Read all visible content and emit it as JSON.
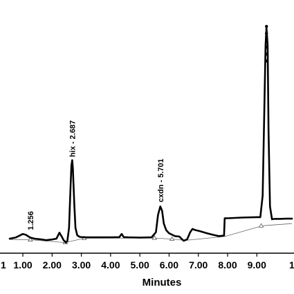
{
  "chart_data": {
    "type": "line",
    "title": "",
    "xlabel": "Minutes",
    "ylabel": "",
    "xlim": [
      0.55,
      10.2
    ],
    "ylim": [
      -0.12,
      1.02
    ],
    "grid": false,
    "legend": "none",
    "x_ticks": [
      {
        "value": 1.0,
        "label": "1.00"
      },
      {
        "value": 2.0,
        "label": "2.00"
      },
      {
        "value": 3.0,
        "label": "3.00"
      },
      {
        "value": 4.0,
        "label": "4.00"
      },
      {
        "value": 5.0,
        "label": "5.00"
      },
      {
        "value": 6.0,
        "label": "6.00"
      },
      {
        "value": 7.0,
        "label": "7.00"
      },
      {
        "value": 8.0,
        "label": "8.00"
      },
      {
        "value": 9.0,
        "label": "9.00"
      }
    ],
    "partial_left_tick": "1",
    "partial_right_tick": "1",
    "peaks": [
      {
        "label": "1.256",
        "x": 1.256,
        "y": 0.02
      },
      {
        "label": "hix - 2.687",
        "x": 2.687,
        "y": 0.36
      },
      {
        "label": "cxdn - 5.701",
        "x": 5.701,
        "y": 0.15
      },
      {
        "label": "",
        "x": 9.33,
        "y": 0.98
      }
    ],
    "series": [
      {
        "points": [
          [
            0.55,
            0.0
          ],
          [
            0.75,
            0.005
          ],
          [
            0.9,
            0.015
          ],
          [
            1.0,
            0.022
          ],
          [
            1.1,
            0.018
          ],
          [
            1.25,
            0.005
          ],
          [
            1.4,
            0.0
          ],
          [
            1.6,
            -0.003
          ],
          [
            1.8,
            -0.007
          ],
          [
            2.0,
            -0.004
          ],
          [
            2.15,
            0.0
          ],
          [
            2.25,
            0.028
          ],
          [
            2.32,
            0.012
          ],
          [
            2.4,
            -0.008
          ],
          [
            2.47,
            -0.018
          ],
          [
            2.52,
            -0.012
          ],
          [
            2.58,
            0.05
          ],
          [
            2.62,
            0.2
          ],
          [
            2.66,
            0.34
          ],
          [
            2.687,
            0.365
          ],
          [
            2.71,
            0.33
          ],
          [
            2.76,
            0.16
          ],
          [
            2.8,
            0.05
          ],
          [
            2.86,
            0.015
          ],
          [
            2.95,
            0.008
          ],
          [
            3.1,
            0.006
          ],
          [
            3.5,
            0.006
          ],
          [
            4.0,
            0.006
          ],
          [
            4.3,
            0.007
          ],
          [
            4.38,
            0.022
          ],
          [
            4.45,
            0.007
          ],
          [
            4.6,
            0.006
          ],
          [
            5.0,
            0.005
          ],
          [
            5.4,
            0.006
          ],
          [
            5.55,
            0.03
          ],
          [
            5.62,
            0.11
          ],
          [
            5.7,
            0.15
          ],
          [
            5.76,
            0.13
          ],
          [
            5.82,
            0.07
          ],
          [
            5.9,
            0.04
          ],
          [
            6.0,
            0.025
          ],
          [
            6.2,
            0.012
          ],
          [
            6.35,
            0.01
          ],
          [
            6.42,
            0.0
          ],
          [
            6.5,
            -0.01
          ],
          [
            6.62,
            -0.003
          ],
          [
            6.72,
            0.03
          ],
          [
            6.8,
            0.045
          ],
          [
            6.9,
            0.04
          ],
          [
            7.05,
            0.035
          ],
          [
            7.3,
            0.025
          ],
          [
            7.5,
            0.018
          ],
          [
            7.7,
            0.012
          ],
          [
            7.88,
            0.014
          ],
          [
            7.9,
            0.095
          ],
          [
            8.0,
            0.095
          ],
          [
            8.5,
            0.098
          ],
          [
            9.0,
            0.1
          ],
          [
            9.12,
            0.1
          ],
          [
            9.2,
            0.2
          ],
          [
            9.25,
            0.55
          ],
          [
            9.3,
            0.9
          ],
          [
            9.33,
            0.98
          ],
          [
            9.37,
            0.9
          ],
          [
            9.4,
            0.5
          ],
          [
            9.45,
            0.15
          ],
          [
            9.52,
            0.09
          ],
          [
            9.6,
            0.092
          ],
          [
            9.8,
            0.092
          ],
          [
            10.0,
            0.093
          ],
          [
            10.2,
            0.093
          ]
        ]
      }
    ],
    "baseline": [
      [
        0.55,
        -0.004
      ],
      [
        1.256,
        -0.005
      ],
      [
        2.45,
        -0.018
      ],
      [
        3.1,
        0.002
      ],
      [
        5.5,
        0.003
      ],
      [
        6.1,
        -0.002
      ],
      [
        6.55,
        -0.008
      ],
      [
        7.9,
        0.01
      ],
      [
        9.2,
        0.06
      ],
      [
        10.2,
        0.07
      ]
    ],
    "baseline_markers": [
      [
        1.256,
        -0.005
      ],
      [
        2.45,
        -0.018
      ],
      [
        3.1,
        0.002
      ],
      [
        5.5,
        0.003
      ],
      [
        6.1,
        -0.002
      ],
      [
        9.15,
        0.06
      ]
    ]
  }
}
